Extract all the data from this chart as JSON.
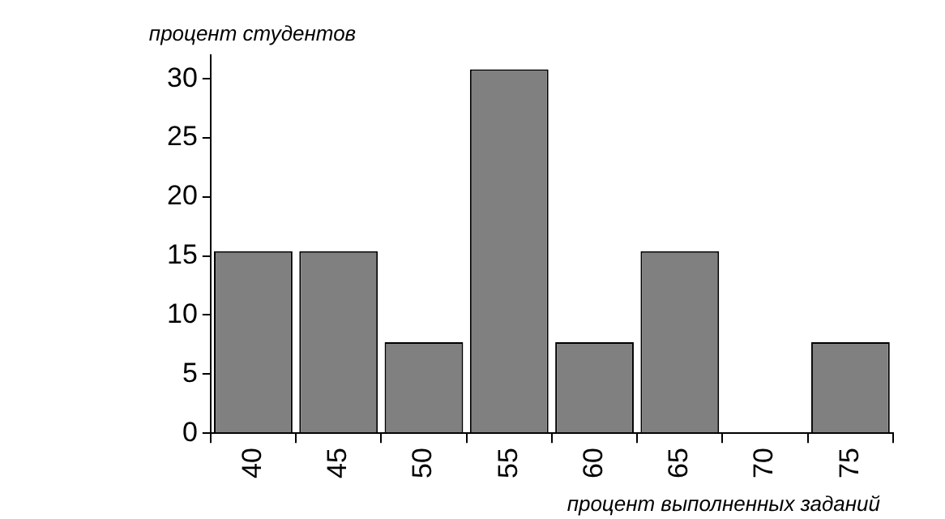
{
  "chart_data": {
    "type": "bar",
    "xlabel": "процент выполненных заданий",
    "ylabel": "процент студентов",
    "categories": [
      "40",
      "45",
      "50",
      "55",
      "60",
      "65",
      "70",
      "75"
    ],
    "values": [
      15.4,
      15.4,
      7.7,
      30.8,
      7.7,
      15.4,
      0,
      7.7
    ],
    "color": "#808080",
    "ylim": [
      0,
      32
    ],
    "yticks": [
      0,
      5,
      10,
      15,
      20,
      25,
      30
    ],
    "grid": false,
    "legend": false
  }
}
